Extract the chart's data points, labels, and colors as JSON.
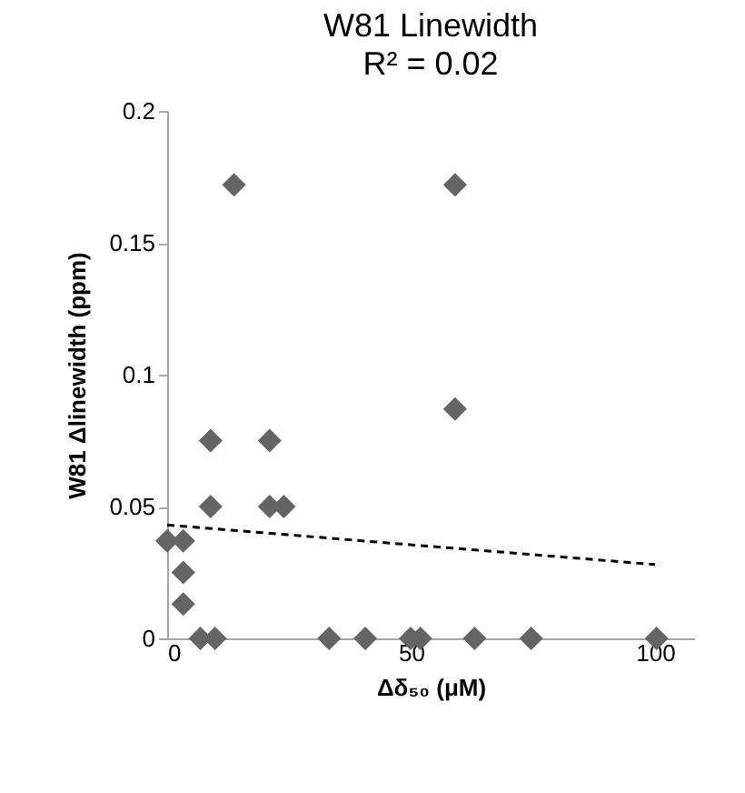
{
  "chart_data": {
    "type": "scatter",
    "title": "W81 Linewidth",
    "subtitle": "R² = 0.02",
    "xlabel": "Δδ₅₀ (μM)",
    "ylabel": "W81 Δlinewidth (ppm)",
    "xlim": [
      0,
      108
    ],
    "xticks": [
      0,
      50,
      100
    ],
    "ylim": [
      0,
      0.2
    ],
    "yticks": [
      0,
      0.05,
      0.1,
      0.15,
      0.2
    ],
    "grid": false,
    "marker": "diamond",
    "series": [
      {
        "color": "#646464",
        "x": [
          13.7,
          59,
          59,
          8.9,
          21,
          8.9,
          21,
          23.9,
          0,
          3.3,
          3.3,
          3.3,
          6.8,
          9.8,
          33.2,
          40.6,
          49.9,
          51.9,
          63,
          74.6,
          100.3
        ],
        "values": [
          0.172,
          0.172,
          0.087,
          0.075,
          0.075,
          0.05,
          0.05,
          0.05,
          0.037,
          0.037,
          0.025,
          0.013,
          0,
          0,
          0,
          0,
          0,
          0,
          0,
          0,
          0
        ]
      },
      {
        "type": "line",
        "color": "#000000",
        "line_style": "dashed",
        "marker": "none",
        "x": [
          0,
          100
        ],
        "values": [
          0.043,
          0.028
        ]
      }
    ]
  }
}
